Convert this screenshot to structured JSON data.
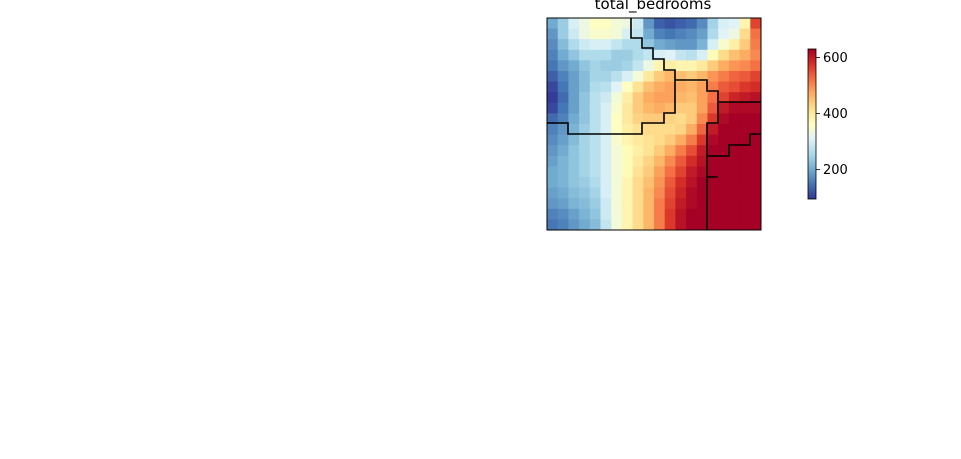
{
  "chart_data": {
    "type": "heatmap",
    "title": "total_bedrooms",
    "grid_size": [
      20,
      20
    ],
    "colormap": "RdYlBu_r",
    "value_range": [
      95,
      630
    ],
    "colorbar": {
      "ticks": [
        200,
        400,
        600
      ],
      "tick_labels": [
        "200",
        "400",
        "600"
      ],
      "colors": [
        "#313695",
        "#4575b4",
        "#74add1",
        "#abd9e9",
        "#e0f3f8",
        "#ffffbf",
        "#fee090",
        "#fdae61",
        "#f46d43",
        "#d73027",
        "#a50026"
      ]
    },
    "axes_visible": false,
    "grid": false,
    "values": [
      [
        200,
        240,
        300,
        330,
        360,
        360,
        340,
        330,
        290,
        180,
        130,
        120,
        130,
        140,
        170,
        250,
        300,
        310,
        380,
        560
      ],
      [
        180,
        240,
        290,
        330,
        350,
        350,
        340,
        300,
        280,
        200,
        160,
        150,
        160,
        170,
        190,
        260,
        310,
        330,
        420,
        520
      ],
      [
        170,
        220,
        260,
        290,
        300,
        300,
        280,
        260,
        260,
        230,
        200,
        190,
        180,
        180,
        210,
        300,
        350,
        390,
        440,
        510
      ],
      [
        160,
        200,
        230,
        260,
        260,
        260,
        240,
        240,
        260,
        280,
        300,
        310,
        280,
        270,
        300,
        370,
        420,
        450,
        470,
        500
      ],
      [
        150,
        180,
        200,
        230,
        250,
        240,
        240,
        250,
        280,
        330,
        380,
        390,
        380,
        380,
        400,
        440,
        470,
        490,
        500,
        520
      ],
      [
        130,
        160,
        190,
        220,
        250,
        250,
        270,
        300,
        340,
        400,
        440,
        460,
        450,
        440,
        460,
        490,
        510,
        530,
        540,
        560
      ],
      [
        110,
        150,
        190,
        220,
        260,
        270,
        310,
        360,
        410,
        450,
        470,
        480,
        470,
        460,
        480,
        510,
        540,
        550,
        570,
        580
      ],
      [
        100,
        140,
        190,
        230,
        270,
        290,
        340,
        390,
        440,
        470,
        480,
        480,
        460,
        450,
        480,
        520,
        560,
        590,
        600,
        610
      ],
      [
        110,
        150,
        190,
        230,
        270,
        300,
        350,
        400,
        440,
        460,
        470,
        460,
        440,
        440,
        480,
        540,
        600,
        620,
        620,
        620
      ],
      [
        140,
        160,
        200,
        230,
        270,
        300,
        360,
        400,
        430,
        440,
        440,
        430,
        420,
        440,
        500,
        570,
        620,
        630,
        630,
        630
      ],
      [
        160,
        180,
        210,
        240,
        270,
        300,
        360,
        390,
        410,
        420,
        420,
        420,
        430,
        470,
        530,
        600,
        630,
        630,
        630,
        630
      ],
      [
        170,
        190,
        220,
        250,
        270,
        300,
        350,
        380,
        400,
        410,
        420,
        440,
        470,
        510,
        570,
        620,
        630,
        630,
        630,
        630
      ],
      [
        180,
        200,
        230,
        250,
        270,
        300,
        340,
        370,
        390,
        410,
        440,
        470,
        510,
        550,
        600,
        630,
        630,
        630,
        630,
        630
      ],
      [
        190,
        210,
        230,
        250,
        270,
        300,
        340,
        370,
        400,
        430,
        460,
        500,
        540,
        580,
        610,
        630,
        630,
        630,
        630,
        630
      ],
      [
        200,
        210,
        230,
        250,
        270,
        300,
        340,
        370,
        410,
        440,
        480,
        520,
        560,
        600,
        620,
        630,
        630,
        630,
        630,
        630
      ],
      [
        200,
        210,
        230,
        240,
        260,
        300,
        340,
        380,
        420,
        450,
        490,
        540,
        580,
        610,
        630,
        630,
        630,
        630,
        630,
        630
      ],
      [
        190,
        200,
        220,
        230,
        250,
        300,
        340,
        380,
        420,
        460,
        500,
        550,
        590,
        620,
        630,
        630,
        630,
        630,
        630,
        630
      ],
      [
        180,
        190,
        210,
        220,
        240,
        290,
        340,
        380,
        420,
        460,
        510,
        560,
        600,
        620,
        630,
        630,
        630,
        630,
        630,
        630
      ],
      [
        160,
        170,
        190,
        210,
        230,
        290,
        340,
        380,
        420,
        460,
        510,
        570,
        610,
        630,
        630,
        630,
        630,
        630,
        630,
        630
      ],
      [
        150,
        160,
        180,
        200,
        220,
        280,
        340,
        380,
        420,
        460,
        510,
        570,
        610,
        630,
        630,
        630,
        630,
        630,
        630,
        630
      ]
    ]
  }
}
